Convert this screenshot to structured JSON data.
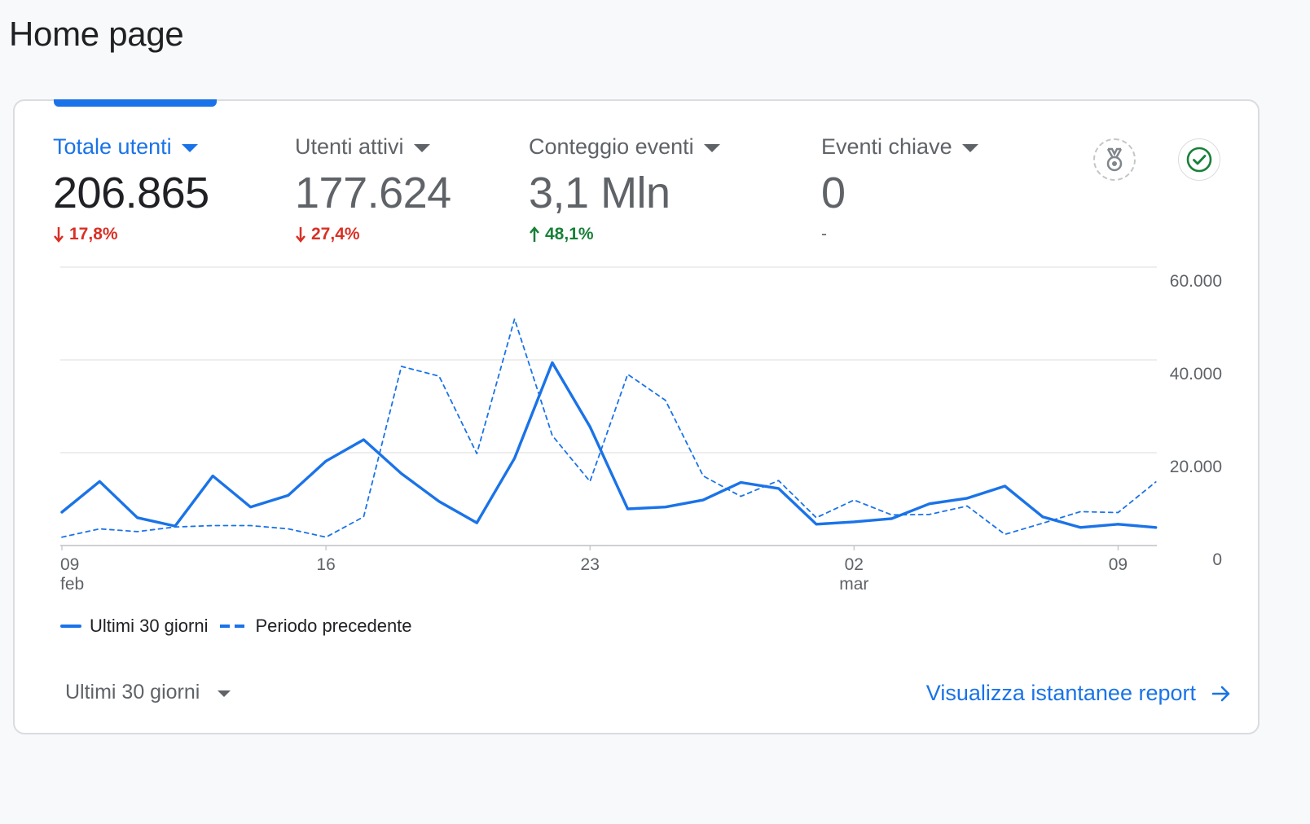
{
  "page": {
    "title": "Home page"
  },
  "metrics": [
    {
      "label": "Totale utenti",
      "value": "206.865",
      "change": "17,8%",
      "direction": "down",
      "active": true
    },
    {
      "label": "Utenti attivi",
      "value": "177.624",
      "change": "27,4%",
      "direction": "down",
      "active": false
    },
    {
      "label": "Conteggio eventi",
      "value": "3,1 Mln",
      "change": "48,1%",
      "direction": "up",
      "active": false
    },
    {
      "label": "Eventi chiave",
      "value": "0",
      "change": "-",
      "direction": "none",
      "active": false
    }
  ],
  "icons": {
    "insights": "medal-icon",
    "status": "check-circle-icon"
  },
  "colors": {
    "accent": "#1a73e8",
    "down": "#d93025",
    "up": "#188038",
    "muted": "#5f6368"
  },
  "chart_data": {
    "type": "line",
    "x_ticks": [
      {
        "day": 0,
        "label": "09",
        "sub": "feb"
      },
      {
        "day": 7,
        "label": "16",
        "sub": ""
      },
      {
        "day": 14,
        "label": "23",
        "sub": ""
      },
      {
        "day": 21,
        "label": "02",
        "sub": "mar"
      },
      {
        "day": 28,
        "label": "09",
        "sub": ""
      }
    ],
    "y_ticks": [
      "0",
      "20.000",
      "40.000",
      "60.000"
    ],
    "ylim": [
      0,
      60000
    ],
    "series": [
      {
        "name": "Ultimi 30 giorni",
        "style": "solid",
        "values": [
          7200,
          13800,
          6000,
          4200,
          15000,
          8300,
          10800,
          18200,
          22800,
          15500,
          9500,
          4900,
          18800,
          39400,
          25600,
          7900,
          8300,
          9800,
          13600,
          12300,
          4600,
          5100,
          5800,
          9000,
          10200,
          12800,
          6200,
          3900,
          4600,
          3900
        ]
      },
      {
        "name": "Periodo precedente",
        "style": "dashed",
        "values": [
          1800,
          3600,
          3000,
          4000,
          4300,
          4300,
          3600,
          1800,
          6200,
          38600,
          36500,
          19800,
          48800,
          23700,
          13800,
          36900,
          31300,
          15000,
          10600,
          14000,
          6000,
          9800,
          6600,
          6700,
          8500,
          2400,
          4800,
          7300,
          7100,
          13700
        ]
      }
    ]
  },
  "legend": {
    "current": "Ultimi 30 giorni",
    "previous": "Periodo precedente"
  },
  "footer": {
    "period_label": "Ultimi 30 giorni",
    "report_link": "Visualizza istantanee report"
  }
}
